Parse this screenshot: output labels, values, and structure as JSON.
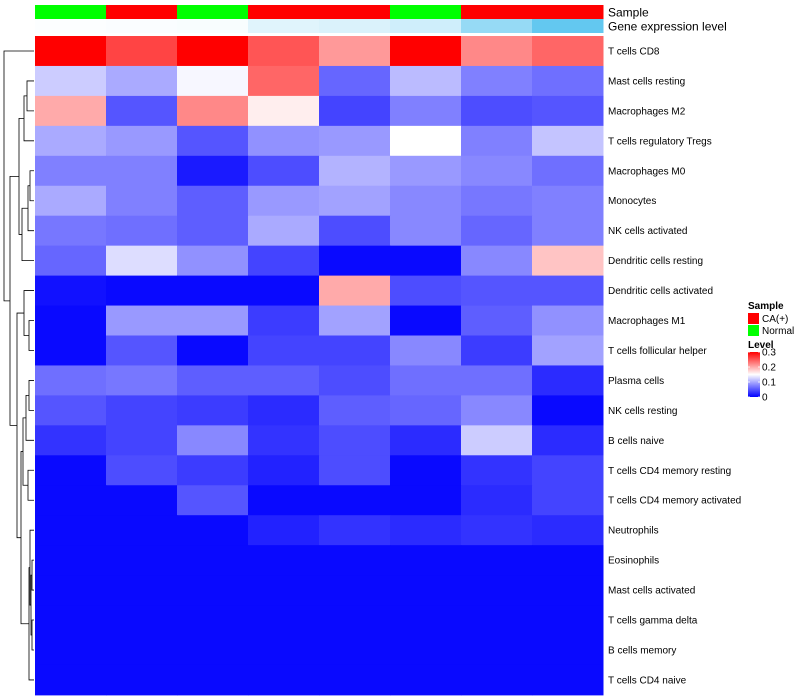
{
  "chart_data": {
    "type": "heatmap",
    "annotation_rows": [
      {
        "label": "Sample",
        "values": [
          "Normal",
          "CA(+)",
          "Normal",
          "CA(+)",
          "CA(+)",
          "Normal",
          "CA(+)",
          "CA(+)"
        ]
      },
      {
        "label": "Gene expression level",
        "values": [
          0.02,
          0.03,
          0.04,
          0.18,
          0.22,
          0.28,
          0.62,
          0.92
        ]
      }
    ],
    "rows": [
      "T cells CD8",
      "Mast cells resting",
      "Macrophages M2",
      "T cells regulatory  Tregs",
      "Macrophages M0",
      "Monocytes",
      "NK cells activated",
      "Dendritic cells resting",
      "Dendritic cells activated",
      "Macrophages M1",
      "T cells follicular helper",
      "Plasma cells",
      "NK cells resting",
      "B cells naive",
      "T cells CD4 memory resting",
      "T cells CD4 memory activated",
      "Neutrophils",
      "Eosinophils",
      "Mast cells activated",
      "T cells gamma delta",
      "B cells memory",
      "T cells CD4 naive"
    ],
    "values": [
      [
        0.3,
        0.26,
        0.3,
        0.25,
        0.21,
        0.3,
        0.22,
        0.24
      ],
      [
        0.12,
        0.1,
        0.145,
        0.24,
        0.06,
        0.11,
        0.075,
        0.065
      ],
      [
        0.2,
        0.05,
        0.22,
        0.16,
        0.04,
        0.075,
        0.045,
        0.05
      ],
      [
        0.1,
        0.09,
        0.05,
        0.085,
        0.09,
        0.15,
        0.075,
        0.115
      ],
      [
        0.075,
        0.075,
        0.015,
        0.045,
        0.105,
        0.09,
        0.08,
        0.065
      ],
      [
        0.1,
        0.075,
        0.055,
        0.09,
        0.095,
        0.08,
        0.07,
        0.075
      ],
      [
        0.07,
        0.065,
        0.055,
        0.1,
        0.045,
        0.08,
        0.06,
        0.075
      ],
      [
        0.06,
        0.13,
        0.085,
        0.04,
        0.005,
        0.005,
        0.08,
        0.185
      ],
      [
        0.01,
        0.005,
        0.005,
        0.005,
        0.2,
        0.045,
        0.05,
        0.05
      ],
      [
        0.005,
        0.09,
        0.09,
        0.035,
        0.095,
        0.005,
        0.055,
        0.085
      ],
      [
        0.005,
        0.05,
        0.005,
        0.04,
        0.04,
        0.08,
        0.035,
        0.095
      ],
      [
        0.065,
        0.07,
        0.055,
        0.055,
        0.045,
        0.065,
        0.065,
        0.025
      ],
      [
        0.05,
        0.04,
        0.035,
        0.025,
        0.055,
        0.06,
        0.08,
        0.005
      ],
      [
        0.03,
        0.04,
        0.08,
        0.03,
        0.045,
        0.025,
        0.12,
        0.025
      ],
      [
        0.005,
        0.045,
        0.035,
        0.02,
        0.045,
        0.005,
        0.03,
        0.04
      ],
      [
        0.005,
        0.005,
        0.05,
        0.005,
        0.005,
        0.005,
        0.025,
        0.04
      ],
      [
        0.005,
        0.005,
        0.005,
        0.02,
        0.03,
        0.025,
        0.03,
        0.025
      ],
      [
        0.005,
        0.005,
        0.005,
        0.005,
        0.005,
        0.005,
        0.005,
        0.005
      ],
      [
        0.005,
        0.005,
        0.005,
        0.005,
        0.005,
        0.005,
        0.005,
        0.005
      ],
      [
        0.005,
        0.005,
        0.005,
        0.005,
        0.005,
        0.005,
        0.005,
        0.005
      ],
      [
        0.005,
        0.005,
        0.005,
        0.005,
        0.005,
        0.005,
        0.005,
        0.005
      ],
      [
        0.005,
        0.005,
        0.005,
        0.005,
        0.005,
        0.005,
        0.005,
        0.005
      ]
    ],
    "color_scale": {
      "low": "#0000ff",
      "mid": "#ffffff",
      "high": "#ff0000",
      "domain": [
        0,
        0.15,
        0.3
      ]
    },
    "expression_scale": {
      "low": "#ffffff",
      "high": "#55c3ef"
    },
    "sample_colors": {
      "CA(+)": "#ff0000",
      "Normal": "#00ff00"
    },
    "legend": {
      "sample_title": "Sample",
      "sample_items": [
        "CA(+)",
        "Normal"
      ],
      "level_title": "Level",
      "level_ticks": [
        "0.3",
        "0.2",
        "0.1",
        "0"
      ],
      "level_tick_values": [
        0.3,
        0.2,
        0.1,
        0
      ],
      "placement": "right"
    },
    "row_dendrogram": true,
    "title": "",
    "xlabel": "",
    "ylabel": ""
  }
}
